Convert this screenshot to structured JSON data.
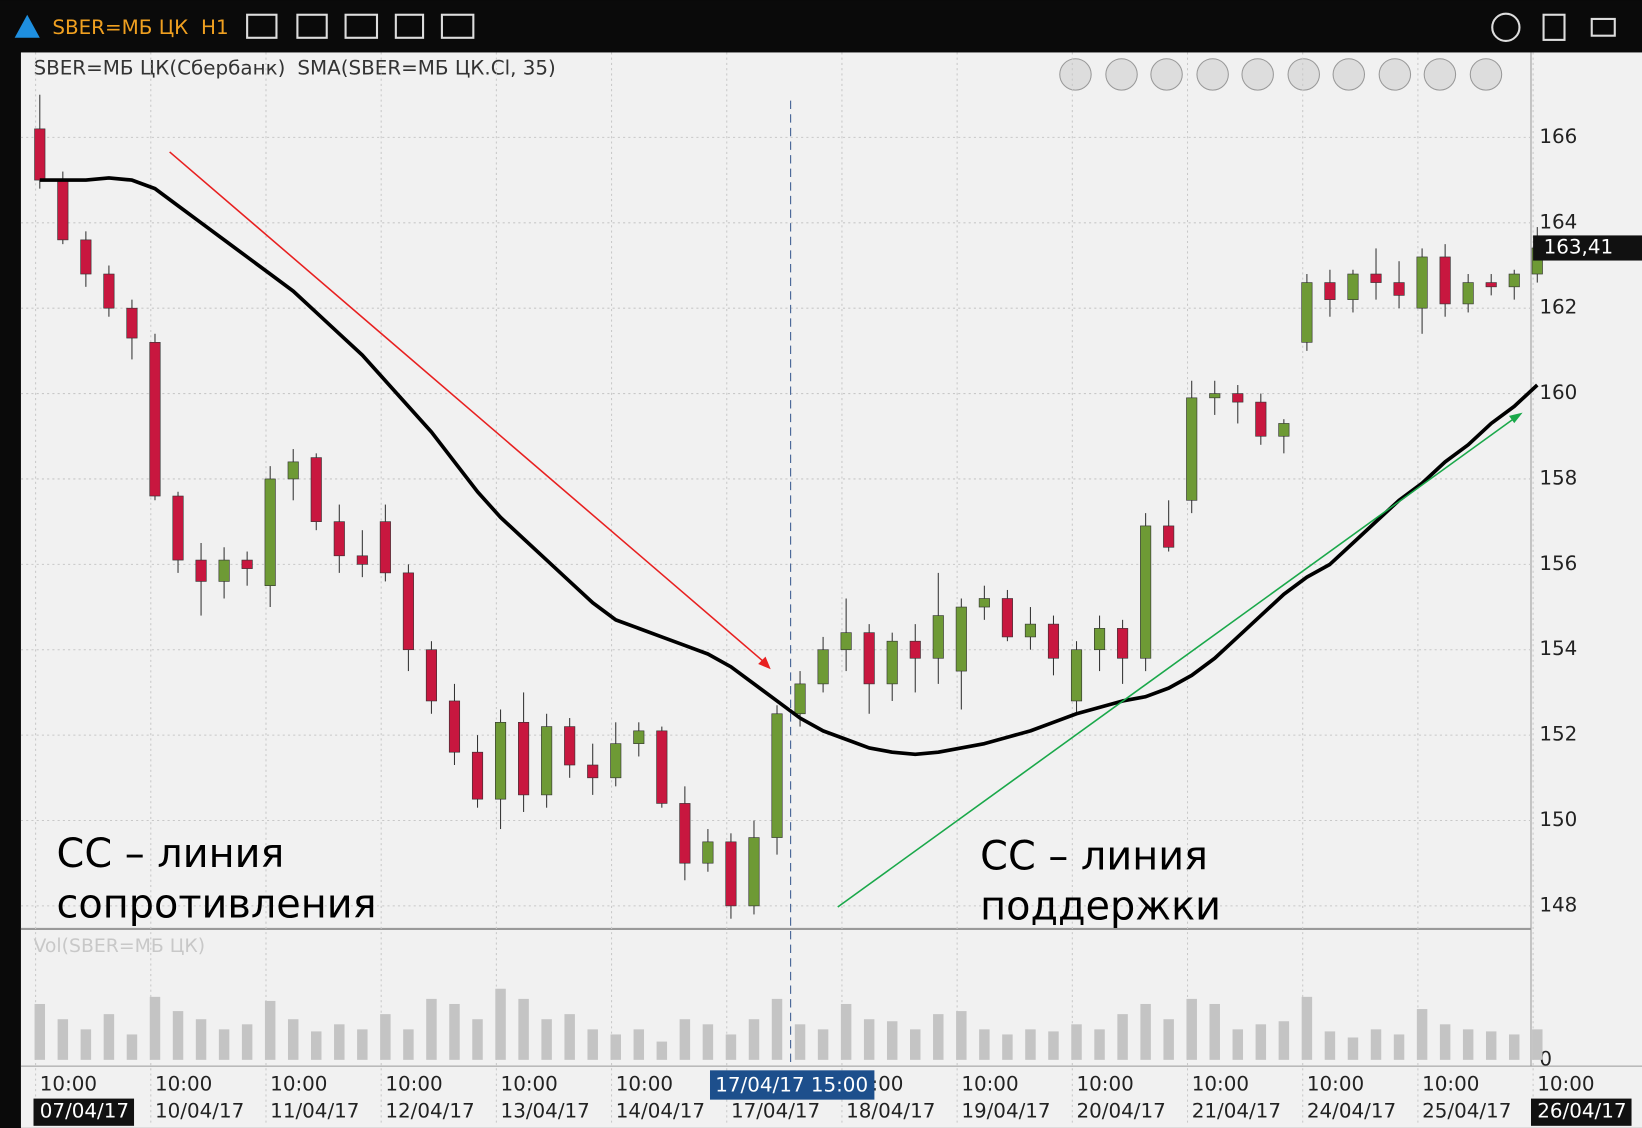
{
  "chart_data": {
    "type": "candlestick",
    "toolbar": {
      "symbol": "SBER=МБ ЦК",
      "interval": "H1"
    },
    "title": "SBER=МБ ЦК(Сбербанк)",
    "indicator": "SMA(SBER=МБ ЦК.Cl, 35)",
    "volume_title": "Vol(SBER=МБ ЦК)",
    "ylim": [
      147.46,
      167.99
    ],
    "yticks": [
      148,
      150,
      152,
      154,
      156,
      158,
      160,
      162,
      164,
      166
    ],
    "vol_ylim": [
      0,
      100
    ],
    "vol_yticks": [
      0
    ],
    "grid": true,
    "up_color": "#6e9a35",
    "down_color": "#c8173f",
    "sma_color": "#000000",
    "vol_color": "#c4c4c4",
    "last_price": {
      "value": 163.41,
      "label": "163,41"
    },
    "crosshair_label": "17/04/17 15:00",
    "x_labels": [
      {
        "time": "10:00",
        "date": "07/04/17"
      },
      {
        "time": "10:00",
        "date": "10/04/17"
      },
      {
        "time": "10:00",
        "date": "11/04/17"
      },
      {
        "time": "10:00",
        "date": "12/04/17"
      },
      {
        "time": "10:00",
        "date": "13/04/17"
      },
      {
        "time": "10:00",
        "date": "14/04/17"
      },
      {
        "time": "10:00",
        "date": "17/04/17"
      },
      {
        "time": "10:00",
        "date": "18/04/17"
      },
      {
        "time": "10:00",
        "date": "19/04/17"
      },
      {
        "time": "10:00",
        "date": "20/04/17"
      },
      {
        "time": "10:00",
        "date": "21/04/17"
      },
      {
        "time": "10:00",
        "date": "24/04/17"
      },
      {
        "time": "10:00",
        "date": "25/04/17"
      },
      {
        "time": "10:00",
        "date": "26/04/17"
      }
    ],
    "candles": [
      [
        166.2,
        167,
        164.8,
        165
      ],
      [
        165,
        165.2,
        163.5,
        163.6
      ],
      [
        163.6,
        163.8,
        162.5,
        162.8
      ],
      [
        162.8,
        163,
        161.8,
        162
      ],
      [
        162,
        162.2,
        160.8,
        161.3
      ],
      [
        161.2,
        161.4,
        157.5,
        157.6
      ],
      [
        157.6,
        157.7,
        155.8,
        156.1
      ],
      [
        156.1,
        156.5,
        154.8,
        155.6
      ],
      [
        155.6,
        156.4,
        155.2,
        156.1
      ],
      [
        156.1,
        156.3,
        155.5,
        155.9
      ],
      [
        155.5,
        158.3,
        155,
        158
      ],
      [
        158,
        158.7,
        157.5,
        158.4
      ],
      [
        158.5,
        158.6,
        156.8,
        157
      ],
      [
        157,
        157.4,
        155.8,
        156.2
      ],
      [
        156.2,
        156.8,
        155.7,
        156
      ],
      [
        157,
        157.4,
        155.6,
        155.8
      ],
      [
        155.8,
        156,
        153.5,
        154
      ],
      [
        154,
        154.2,
        152.5,
        152.8
      ],
      [
        152.8,
        153.2,
        151.3,
        151.6
      ],
      [
        151.6,
        152,
        150.3,
        150.5
      ],
      [
        150.5,
        152.6,
        149.8,
        152.3
      ],
      [
        152.3,
        153,
        150.2,
        150.6
      ],
      [
        150.6,
        152.5,
        150.3,
        152.2
      ],
      [
        152.2,
        152.4,
        151,
        151.3
      ],
      [
        151.3,
        151.8,
        150.6,
        151
      ],
      [
        151,
        152.3,
        150.8,
        151.8
      ],
      [
        151.8,
        152.3,
        151.5,
        152.1
      ],
      [
        152.1,
        152.2,
        150.3,
        150.4
      ],
      [
        150.4,
        150.8,
        148.6,
        149
      ],
      [
        149,
        149.8,
        148.8,
        149.5
      ],
      [
        149.5,
        149.7,
        147.7,
        148
      ],
      [
        148,
        150,
        147.8,
        149.6
      ],
      [
        149.6,
        152.7,
        149.2,
        152.5
      ],
      [
        152.5,
        153.5,
        152.2,
        153.2
      ],
      [
        153.2,
        154.3,
        153,
        154
      ],
      [
        154,
        155.2,
        153.5,
        154.4
      ],
      [
        154.4,
        154.6,
        152.5,
        153.2
      ],
      [
        153.2,
        154.4,
        152.8,
        154.2
      ],
      [
        154.2,
        154.6,
        153,
        153.8
      ],
      [
        153.8,
        155.8,
        153.2,
        154.8
      ],
      [
        153.5,
        155.2,
        152.6,
        155
      ],
      [
        155,
        155.5,
        154.7,
        155.2
      ],
      [
        155.2,
        155.4,
        154.2,
        154.3
      ],
      [
        154.3,
        155,
        154,
        154.6
      ],
      [
        154.6,
        154.8,
        153.4,
        153.8
      ],
      [
        152.8,
        154.2,
        152.5,
        154
      ],
      [
        154,
        154.8,
        153.5,
        154.5
      ],
      [
        154.5,
        154.7,
        153.2,
        153.8
      ],
      [
        153.8,
        157.2,
        153.5,
        156.9
      ],
      [
        156.9,
        157.5,
        156.3,
        156.4
      ],
      [
        157.5,
        160.3,
        157.2,
        159.9
      ],
      [
        159.9,
        160.3,
        159.5,
        160
      ],
      [
        160,
        160.2,
        159.3,
        159.8
      ],
      [
        159.8,
        160,
        158.8,
        159
      ],
      [
        159,
        159.4,
        158.6,
        159.3
      ],
      [
        161.2,
        162.8,
        161,
        162.6
      ],
      [
        162.6,
        162.9,
        161.8,
        162.2
      ],
      [
        162.2,
        162.9,
        161.9,
        162.8
      ],
      [
        162.8,
        163.4,
        162.2,
        162.6
      ],
      [
        162.6,
        163.1,
        162,
        162.3
      ],
      [
        162,
        163.4,
        161.4,
        163.2
      ],
      [
        163.2,
        163.5,
        161.8,
        162.1
      ],
      [
        162.1,
        162.8,
        161.9,
        162.6
      ],
      [
        162.6,
        162.8,
        162.3,
        162.5
      ],
      [
        162.5,
        162.9,
        162.2,
        162.8
      ],
      [
        162.8,
        163.9,
        162.6,
        163.41
      ]
    ],
    "sma": [
      165,
      165,
      165,
      165.05,
      165,
      164.8,
      164.4,
      164,
      163.6,
      163.2,
      162.8,
      162.4,
      161.9,
      161.4,
      160.9,
      160.3,
      159.7,
      159.1,
      158.4,
      157.7,
      157.1,
      156.6,
      156.1,
      155.6,
      155.1,
      154.7,
      154.5,
      154.3,
      154.1,
      153.9,
      153.6,
      153.2,
      152.8,
      152.4,
      152.1,
      151.9,
      151.7,
      151.6,
      151.55,
      151.6,
      151.7,
      151.8,
      151.95,
      152.1,
      152.3,
      152.5,
      152.65,
      152.8,
      152.9,
      153.1,
      153.4,
      153.8,
      154.3,
      154.8,
      155.3,
      155.7,
      156,
      156.5,
      157,
      157.5,
      157.9,
      158.4,
      158.8,
      159.3,
      159.7,
      160.2
    ],
    "volume": [
      55,
      40,
      30,
      45,
      25,
      62,
      48,
      40,
      30,
      35,
      58,
      40,
      28,
      35,
      30,
      45,
      30,
      60,
      55,
      40,
      70,
      60,
      40,
      45,
      30,
      25,
      30,
      18,
      40,
      35,
      25,
      40,
      60,
      35,
      30,
      55,
      40,
      38,
      30,
      45,
      48,
      30,
      25,
      30,
      28,
      35,
      30,
      45,
      55,
      40,
      60,
      55,
      30,
      35,
      38,
      62,
      28,
      22,
      30,
      25,
      50,
      35,
      30,
      28,
      25,
      30
    ],
    "annotations": [
      "СС – линия",
      "сопротивления",
      "СС – линия",
      "поддержки"
    ]
  }
}
